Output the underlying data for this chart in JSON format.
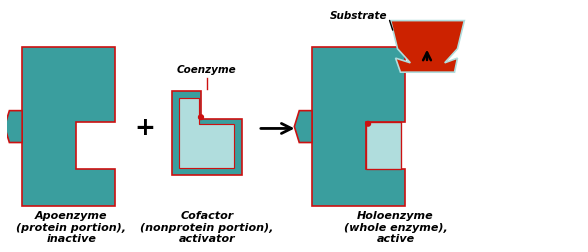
{
  "bg_color": "#ffffff",
  "teal": "#3a9e9e",
  "red_edge": "#cc1111",
  "red_sub": "#cc2200",
  "light_teal": "#b0dddd",
  "label1": [
    "Apoenzyme",
    "(protein portion),",
    "inactive"
  ],
  "label2": [
    "Cofactor",
    "(nonprotein portion),",
    "activator"
  ],
  "label3": [
    "Holoenzyme",
    "(whole enzyme),",
    "active"
  ],
  "coenzyme_label": "Coenzyme",
  "substrate_label": "Substrate"
}
